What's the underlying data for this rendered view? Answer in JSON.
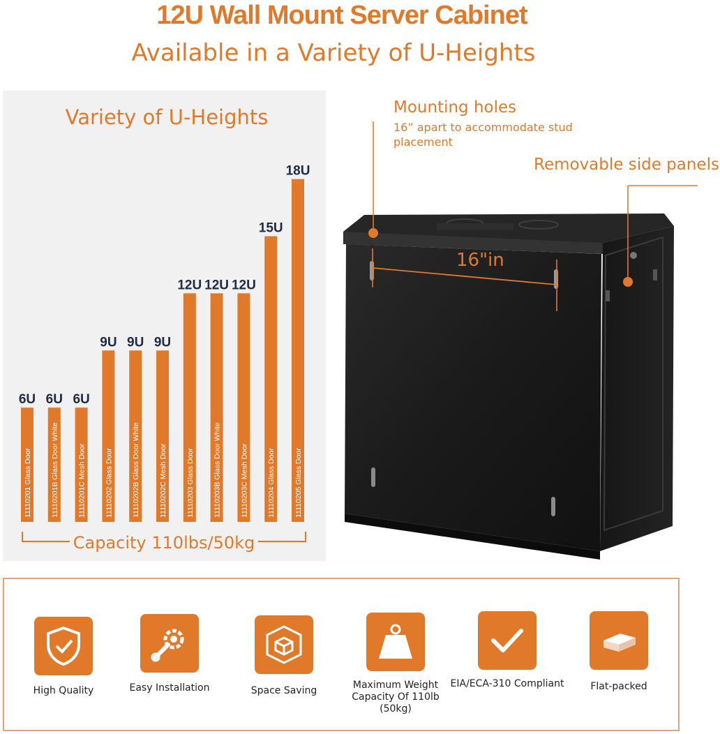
{
  "header": {
    "title": "12U Wall Mount Server Cabinet",
    "subtitle": "Available in a Variety of U-Heights"
  },
  "chart_data": {
    "type": "bar",
    "title": "Variety of U-Heights",
    "categories": [
      "11110201 Glass Door",
      "11110201B Glass Door White",
      "11110201C Mesh Door",
      "11110202 Glass Door",
      "11110202B Glass Door White",
      "11110202C Mesh Door",
      "11110203 Glass Door",
      "11110203B Glass Door White",
      "11110203C Mesh Door",
      "11110204 Glass Door",
      "11110205 Glass Door"
    ],
    "values": [
      6,
      6,
      6,
      9,
      9,
      9,
      12,
      12,
      12,
      15,
      18
    ],
    "value_labels": [
      "6U",
      "6U",
      "6U",
      "9U",
      "9U",
      "9U",
      "12U",
      "12U",
      "12U",
      "15U",
      "18U"
    ],
    "bracket_label": "Capacity 110lbs/50kg",
    "grid": false,
    "bar_color": "#e07a2a"
  },
  "annotations": {
    "mounting_title": "Mounting holes",
    "mounting_sub": "16” apart to accommodate stud placement",
    "side_panels": "Removable side panels",
    "width_label": "16\"in"
  },
  "features": [
    {
      "icon": "shield-check-icon",
      "label": "High Quality"
    },
    {
      "icon": "wrench-gear-icon",
      "label": "Easy Installation"
    },
    {
      "icon": "cube-icon",
      "label": "Space Saving"
    },
    {
      "icon": "weight-icon",
      "label": "Maximum Weight Capacity Of 110lb (50kg)"
    },
    {
      "icon": "checkmark-icon",
      "label": "EIA/ECA-310 Compliant"
    },
    {
      "icon": "flat-box-icon",
      "label": "Flat-packed"
    }
  ],
  "colors": {
    "accent": "#e07a2a",
    "cabinet": "#1c1c1c",
    "panel_bg": "#f1f1f1",
    "value_label": "#1f2a44"
  }
}
